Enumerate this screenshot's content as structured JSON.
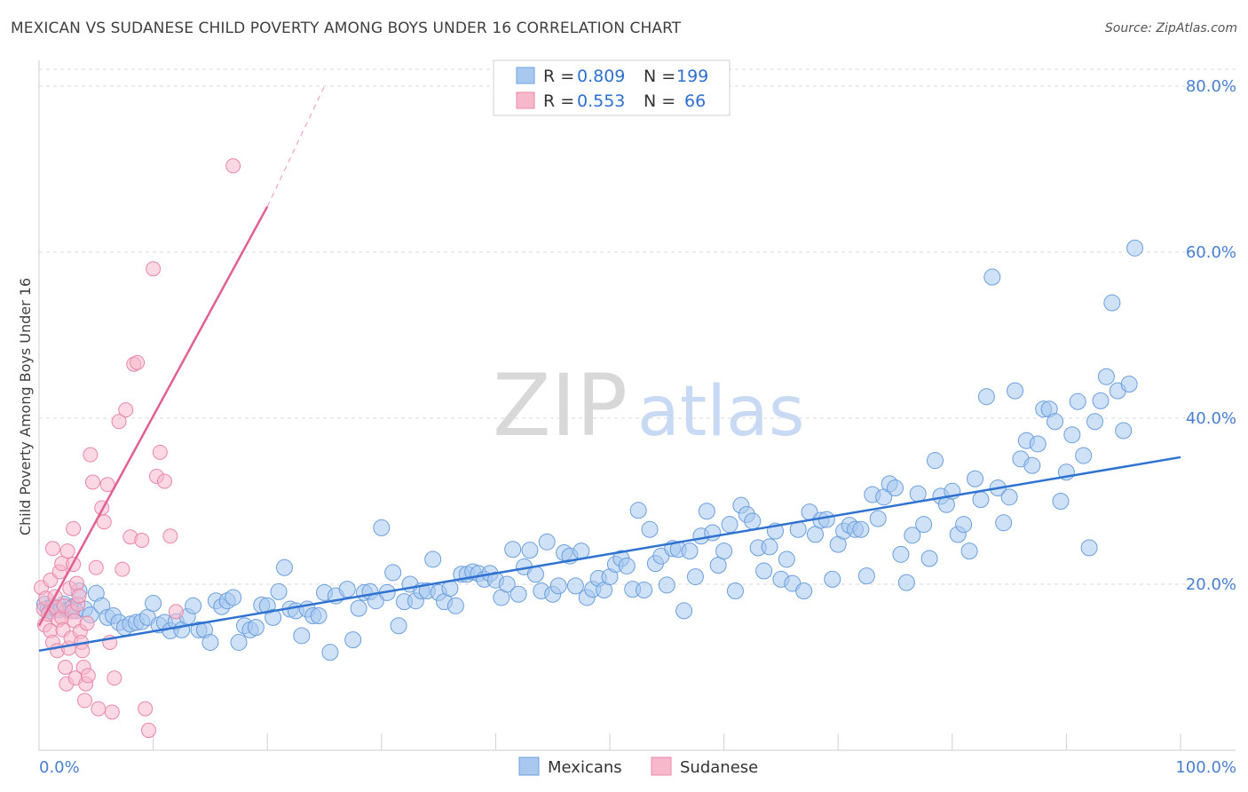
{
  "title": "MEXICAN VS SUDANESE CHILD POVERTY AMONG BOYS UNDER 16 CORRELATION CHART",
  "source": "Source: ZipAtlas.com",
  "watermark": {
    "zip": "ZIP",
    "atlas": "atlas"
  },
  "colors": {
    "blue_fill": "#a8c8f0",
    "blue_stroke": "#6b9fdc",
    "blue_line": "#2f72d0",
    "pink_fill": "#f7b8cc",
    "pink_stroke": "#e887a8",
    "pink_line": "#e0608e",
    "tick_label": "#4a7fd0",
    "grid": "#d8d8d8"
  },
  "legend": {
    "rows": [
      {
        "r_label": "R =",
        "r_value": "0.809",
        "n_label": "N =",
        "n_value": "199"
      },
      {
        "r_label": "R =",
        "r_value": "0.553",
        "n_label": "N =",
        "n_value": "66"
      }
    ]
  },
  "chart_data": {
    "type": "scatter",
    "title": "MEXICAN VS SUDANESE CHILD POVERTY AMONG BOYS UNDER 16 CORRELATION CHART",
    "ylabel": "Child Poverty Among Boys Under 16",
    "xlabel": "",
    "xlim": [
      0,
      100
    ],
    "ylim": [
      0,
      83
    ],
    "x_tick_labels": [
      "0.0%",
      "100.0%"
    ],
    "y_ticks": [
      20,
      40,
      60,
      80
    ],
    "y_tick_labels": [
      "20.0%",
      "40.0%",
      "60.0%",
      "80.0%"
    ],
    "series": [
      {
        "name": "Mexicans",
        "color": "blue",
        "r": 0.809,
        "n": 199,
        "trend": {
          "x0": 0,
          "y0": 12.0,
          "x1": 100,
          "y1": 35.3
        },
        "points": [
          [
            0.5,
            17.6
          ],
          [
            0.8,
            17.1
          ],
          [
            1.0,
            16.8
          ],
          [
            1.2,
            17.3
          ],
          [
            1.5,
            17.0
          ],
          [
            1.8,
            16.9
          ],
          [
            2.0,
            17.2
          ],
          [
            2.2,
            17.6
          ],
          [
            2.5,
            16.9
          ],
          [
            2.8,
            17.0
          ],
          [
            3.0,
            17.3
          ],
          [
            3.2,
            16.8
          ],
          [
            3.5,
            19.2
          ],
          [
            4.0,
            17.0
          ],
          [
            4.5,
            16.3
          ],
          [
            5.0,
            18.9
          ],
          [
            5.5,
            17.4
          ],
          [
            6.0,
            16.0
          ],
          [
            6.5,
            16.2
          ],
          [
            7.0,
            15.4
          ],
          [
            7.5,
            14.8
          ],
          [
            8.0,
            15.2
          ],
          [
            8.5,
            15.4
          ],
          [
            9.0,
            15.5
          ],
          [
            9.5,
            16.0
          ],
          [
            10.0,
            17.7
          ],
          [
            10.5,
            15.1
          ],
          [
            11.0,
            15.4
          ],
          [
            11.5,
            14.4
          ],
          [
            12.0,
            15.5
          ],
          [
            12.5,
            14.5
          ],
          [
            13.0,
            16.1
          ],
          [
            13.5,
            17.4
          ],
          [
            14.0,
            14.5
          ],
          [
            14.5,
            14.5
          ],
          [
            15.0,
            13.0
          ],
          [
            15.5,
            18.0
          ],
          [
            16.0,
            17.3
          ],
          [
            16.5,
            18.0
          ],
          [
            17.0,
            18.4
          ],
          [
            17.5,
            13.0
          ],
          [
            18.0,
            15.0
          ],
          [
            18.5,
            14.5
          ],
          [
            19.0,
            14.8
          ],
          [
            19.5,
            17.5
          ],
          [
            20.0,
            17.4
          ],
          [
            20.5,
            16.0
          ],
          [
            21.0,
            19.1
          ],
          [
            21.5,
            22.0
          ],
          [
            22.0,
            17.0
          ],
          [
            22.5,
            16.8
          ],
          [
            23.0,
            13.8
          ],
          [
            23.5,
            17.0
          ],
          [
            24.0,
            16.2
          ],
          [
            24.5,
            16.2
          ],
          [
            25.0,
            19.0
          ],
          [
            25.5,
            11.8
          ],
          [
            26.0,
            18.6
          ],
          [
            27.0,
            19.4
          ],
          [
            27.5,
            13.3
          ],
          [
            28.0,
            17.1
          ],
          [
            28.5,
            19.0
          ],
          [
            29.0,
            19.1
          ],
          [
            29.5,
            18.0
          ],
          [
            30.0,
            26.8
          ],
          [
            30.5,
            19.0
          ],
          [
            31.0,
            21.4
          ],
          [
            31.5,
            15.0
          ],
          [
            32.0,
            17.9
          ],
          [
            32.5,
            20.0
          ],
          [
            33.0,
            18.0
          ],
          [
            33.5,
            19.2
          ],
          [
            34.0,
            19.2
          ],
          [
            34.5,
            23.0
          ],
          [
            35.0,
            19.0
          ],
          [
            35.5,
            17.9
          ],
          [
            36.0,
            19.5
          ],
          [
            36.5,
            17.4
          ],
          [
            37.0,
            21.2
          ],
          [
            37.5,
            21.2
          ],
          [
            38.0,
            21.5
          ],
          [
            38.5,
            21.3
          ],
          [
            39.0,
            20.6
          ],
          [
            39.5,
            21.3
          ],
          [
            40.0,
            20.5
          ],
          [
            40.5,
            18.4
          ],
          [
            41.0,
            20.0
          ],
          [
            41.5,
            24.2
          ],
          [
            42.0,
            18.8
          ],
          [
            42.5,
            22.1
          ],
          [
            43.0,
            24.1
          ],
          [
            43.5,
            21.2
          ],
          [
            44.0,
            19.2
          ],
          [
            44.5,
            25.1
          ],
          [
            45.0,
            18.8
          ],
          [
            45.5,
            19.8
          ],
          [
            46.0,
            23.8
          ],
          [
            46.5,
            23.4
          ],
          [
            47.0,
            19.8
          ],
          [
            47.5,
            24.0
          ],
          [
            48.0,
            18.4
          ],
          [
            48.5,
            19.4
          ],
          [
            49.0,
            20.7
          ],
          [
            49.5,
            19.3
          ],
          [
            50.0,
            20.9
          ],
          [
            50.5,
            22.4
          ],
          [
            51.0,
            23.1
          ],
          [
            51.5,
            22.2
          ],
          [
            52.0,
            19.4
          ],
          [
            52.5,
            28.9
          ],
          [
            53.0,
            19.3
          ],
          [
            53.5,
            26.6
          ],
          [
            54.0,
            22.5
          ],
          [
            54.5,
            23.4
          ],
          [
            55.0,
            19.9
          ],
          [
            55.5,
            24.3
          ],
          [
            56.0,
            24.2
          ],
          [
            56.5,
            16.8
          ],
          [
            57.0,
            24.0
          ],
          [
            57.5,
            20.9
          ],
          [
            58.0,
            25.8
          ],
          [
            58.5,
            28.8
          ],
          [
            59.0,
            26.2
          ],
          [
            59.5,
            22.3
          ],
          [
            60.0,
            24.0
          ],
          [
            60.5,
            27.2
          ],
          [
            61.0,
            19.2
          ],
          [
            61.5,
            29.5
          ],
          [
            62.0,
            28.4
          ],
          [
            62.5,
            27.6
          ],
          [
            63.0,
            24.4
          ],
          [
            63.5,
            21.6
          ],
          [
            64.0,
            24.5
          ],
          [
            64.5,
            26.4
          ],
          [
            65.0,
            20.6
          ],
          [
            65.5,
            23.0
          ],
          [
            66.0,
            20.1
          ],
          [
            66.5,
            26.6
          ],
          [
            67.0,
            19.2
          ],
          [
            67.5,
            28.7
          ],
          [
            68.0,
            26.0
          ],
          [
            68.5,
            27.7
          ],
          [
            69.0,
            27.8
          ],
          [
            69.5,
            20.6
          ],
          [
            70.0,
            24.8
          ],
          [
            70.5,
            26.4
          ],
          [
            71.0,
            27.1
          ],
          [
            71.5,
            26.6
          ],
          [
            72.0,
            26.6
          ],
          [
            72.5,
            21.0
          ],
          [
            73.0,
            30.8
          ],
          [
            73.5,
            27.9
          ],
          [
            74.0,
            30.5
          ],
          [
            74.5,
            32.1
          ],
          [
            75.0,
            31.6
          ],
          [
            75.5,
            23.6
          ],
          [
            76.0,
            20.2
          ],
          [
            76.5,
            25.9
          ],
          [
            77.0,
            30.9
          ],
          [
            77.5,
            27.2
          ],
          [
            78.0,
            23.1
          ],
          [
            78.5,
            34.9
          ],
          [
            79.0,
            30.6
          ],
          [
            79.5,
            29.6
          ],
          [
            80.0,
            31.2
          ],
          [
            80.5,
            26.0
          ],
          [
            81.0,
            27.2
          ],
          [
            81.5,
            24.0
          ],
          [
            82.0,
            32.7
          ],
          [
            82.5,
            30.2
          ],
          [
            83.0,
            42.6
          ],
          [
            83.5,
            57.0
          ],
          [
            84.0,
            31.6
          ],
          [
            84.5,
            27.4
          ],
          [
            85.0,
            30.5
          ],
          [
            85.5,
            43.3
          ],
          [
            86.0,
            35.1
          ],
          [
            86.5,
            37.3
          ],
          [
            87.0,
            34.3
          ],
          [
            87.5,
            36.9
          ],
          [
            88.0,
            41.1
          ],
          [
            88.5,
            41.1
          ],
          [
            89.0,
            39.6
          ],
          [
            89.5,
            30.0
          ],
          [
            90.0,
            33.5
          ],
          [
            90.5,
            38.0
          ],
          [
            91.0,
            42.0
          ],
          [
            91.5,
            35.5
          ],
          [
            92.0,
            24.4
          ],
          [
            92.5,
            39.6
          ],
          [
            93.0,
            42.1
          ],
          [
            93.5,
            45.0
          ],
          [
            94.0,
            53.9
          ],
          [
            94.5,
            43.3
          ],
          [
            95.0,
            38.5
          ],
          [
            95.5,
            44.1
          ],
          [
            96.0,
            60.5
          ]
        ]
      },
      {
        "name": "Sudanese",
        "color": "pink",
        "r": 0.553,
        "n": 66,
        "trend": {
          "x0": 0,
          "y0": 15.0,
          "x1": 20,
          "y1": 65.5,
          "dashed_to": {
            "x": 25,
            "y": 80.0
          }
        },
        "points": [
          [
            0.2,
            19.6
          ],
          [
            0.4,
            17.0
          ],
          [
            0.5,
            15.1
          ],
          [
            0.6,
            18.3
          ],
          [
            0.8,
            16.4
          ],
          [
            1.0,
            14.4
          ],
          [
            1.0,
            20.5
          ],
          [
            1.2,
            13.0
          ],
          [
            1.2,
            24.3
          ],
          [
            1.4,
            18.5
          ],
          [
            1.5,
            17.2
          ],
          [
            1.6,
            12.0
          ],
          [
            1.7,
            15.7
          ],
          [
            1.8,
            21.5
          ],
          [
            2.0,
            16.0
          ],
          [
            2.0,
            22.5
          ],
          [
            2.1,
            14.5
          ],
          [
            2.2,
            17.4
          ],
          [
            2.3,
            10.0
          ],
          [
            2.4,
            8.0
          ],
          [
            2.5,
            24.0
          ],
          [
            2.6,
            12.3
          ],
          [
            2.7,
            19.5
          ],
          [
            2.8,
            13.5
          ],
          [
            2.9,
            16.7
          ],
          [
            3.0,
            26.7
          ],
          [
            3.0,
            22.4
          ],
          [
            3.1,
            15.6
          ],
          [
            3.2,
            8.7
          ],
          [
            3.3,
            20.1
          ],
          [
            3.4,
            17.6
          ],
          [
            3.5,
            18.6
          ],
          [
            3.6,
            14.3
          ],
          [
            3.7,
            13.0
          ],
          [
            3.8,
            12.0
          ],
          [
            3.9,
            10.0
          ],
          [
            4.0,
            6.0
          ],
          [
            4.1,
            8.0
          ],
          [
            4.2,
            15.3
          ],
          [
            4.3,
            9.0
          ],
          [
            4.5,
            35.6
          ],
          [
            4.7,
            32.3
          ],
          [
            5.0,
            22.0
          ],
          [
            5.2,
            5.0
          ],
          [
            5.5,
            29.2
          ],
          [
            5.7,
            27.5
          ],
          [
            6.0,
            32.0
          ],
          [
            6.2,
            13.0
          ],
          [
            6.4,
            4.6
          ],
          [
            6.6,
            8.7
          ],
          [
            7.0,
            39.6
          ],
          [
            7.3,
            21.8
          ],
          [
            7.6,
            41.0
          ],
          [
            8.0,
            25.7
          ],
          [
            8.3,
            46.5
          ],
          [
            8.6,
            46.7
          ],
          [
            9.0,
            25.3
          ],
          [
            9.3,
            5.0
          ],
          [
            9.6,
            2.4
          ],
          [
            10.0,
            58.0
          ],
          [
            10.3,
            33.0
          ],
          [
            10.6,
            35.9
          ],
          [
            11.0,
            32.4
          ],
          [
            11.5,
            25.8
          ],
          [
            12.0,
            16.7
          ],
          [
            17.0,
            70.4
          ]
        ]
      }
    ]
  },
  "bottom_legend": {
    "items": [
      "Mexicans",
      "Sudanese"
    ]
  }
}
